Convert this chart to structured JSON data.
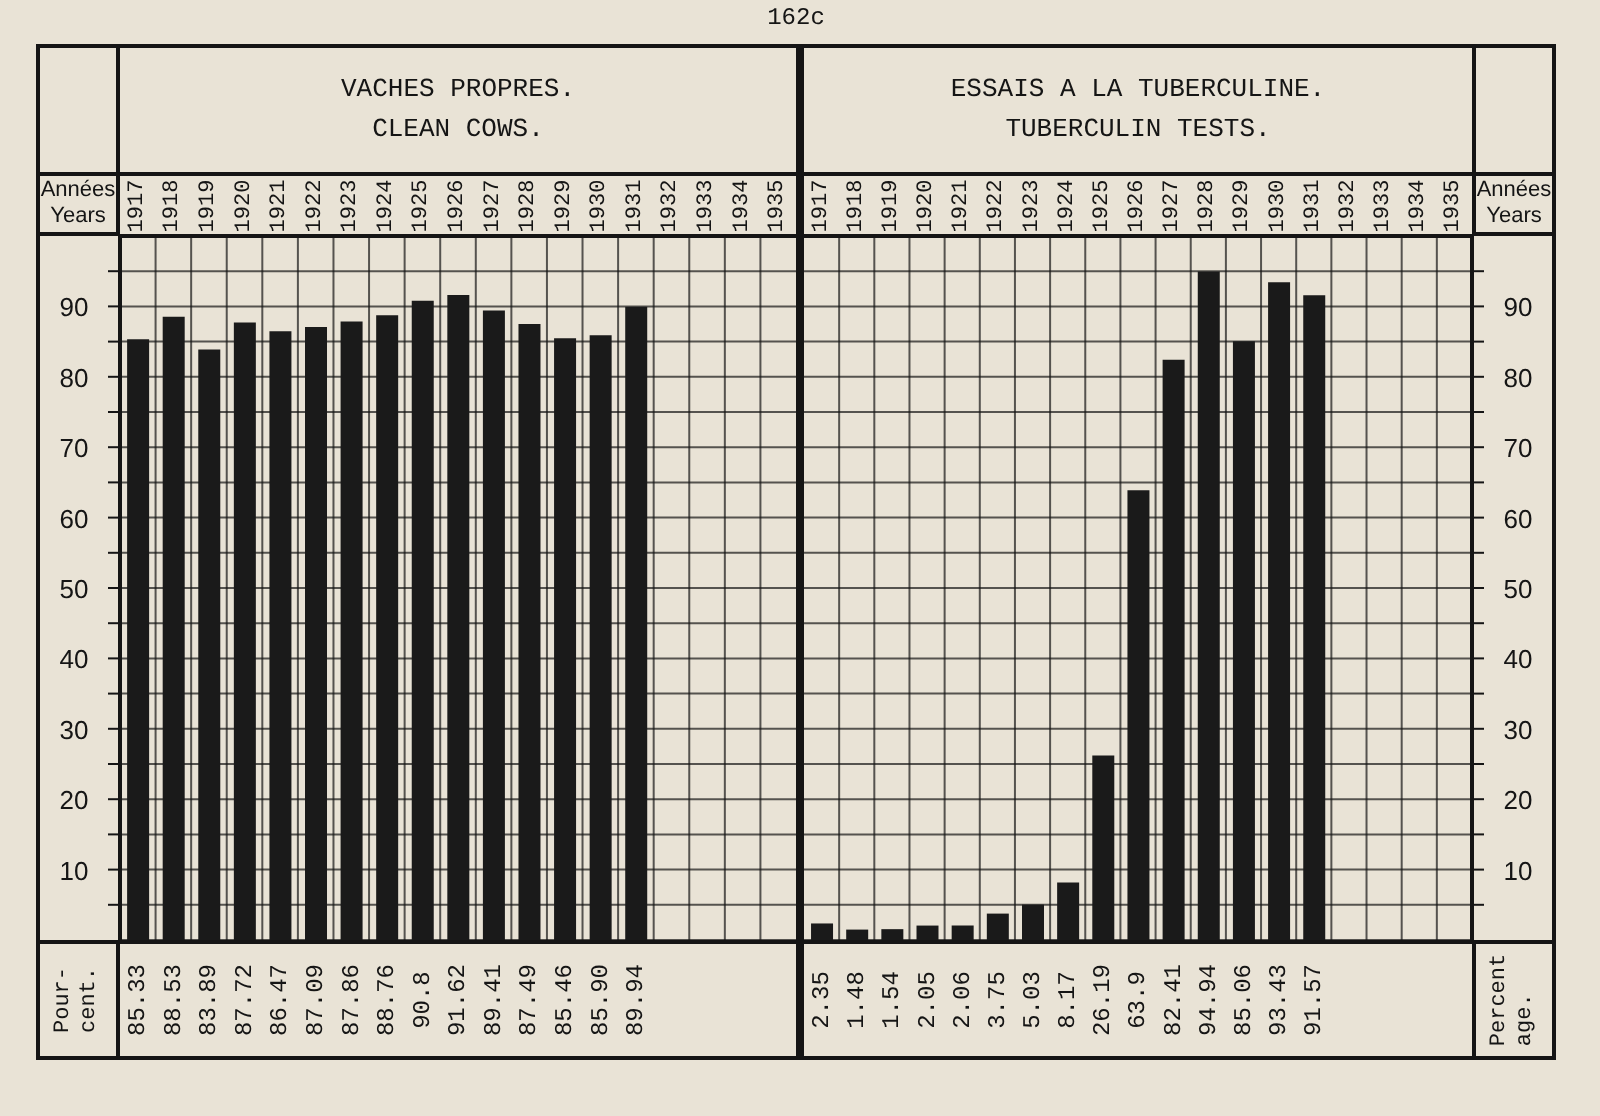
{
  "chart_data": [
    {
      "type": "bar",
      "title": "VACHES PROPRES.",
      "subtitle": "CLEAN COWS.",
      "xlabel": "Années\nYears",
      "ylabel": "Pour-\ncent.",
      "annotations": [
        "162c"
      ],
      "categories": [
        "1917",
        "1918",
        "1919",
        "1920",
        "1921",
        "1922",
        "1923",
        "1924",
        "1925",
        "1926",
        "1927",
        "1928",
        "1929",
        "1930",
        "1931",
        "1932",
        "1933",
        "1934",
        "1935"
      ],
      "values": [
        85.33,
        88.53,
        83.89,
        87.72,
        86.47,
        87.09,
        87.86,
        88.76,
        90.8,
        91.62,
        89.41,
        87.49,
        85.46,
        85.9,
        89.94,
        null,
        null,
        null,
        null
      ],
      "value_labels": [
        "85.33",
        "88.53",
        "83.89",
        "87.72",
        "86.47",
        "87.09",
        "87.86",
        "88.76",
        "90.8",
        "91.62",
        "89.41",
        "87.49",
        "85.46",
        "85.90",
        "89.94",
        null,
        null,
        null,
        null
      ],
      "color": "#1a1a1a",
      "ylim": [
        0,
        100
      ],
      "yticks": [
        {
          "value": 5,
          "label": null
        },
        10,
        {
          "value": 15,
          "label": null
        },
        20,
        {
          "value": 25,
          "label": null
        },
        30,
        {
          "value": 35,
          "label": null
        },
        40,
        {
          "value": 45,
          "label": null
        },
        50,
        {
          "value": 55,
          "label": null
        },
        60,
        {
          "value": 65,
          "label": null
        },
        70,
        {
          "value": 75,
          "label": null
        },
        80,
        {
          "value": 85,
          "label": null
        },
        90,
        {
          "value": 95,
          "label": null
        }
      ],
      "grid": true
    },
    {
      "type": "bar",
      "title": "ESSAIS A LA TUBERCULINE.",
      "subtitle": "TUBERCULIN TESTS.",
      "xlabel": "Années\nYears",
      "ylabel": "Percent\nage.",
      "categories": [
        "1917",
        "1918",
        "1919",
        "1920",
        "1921",
        "1922",
        "1923",
        "1924",
        "1925",
        "1926",
        "1927",
        "1928",
        "1929",
        "1930",
        "1931",
        "1932",
        "1933",
        "1934",
        "1935"
      ],
      "values": [
        2.35,
        1.48,
        1.54,
        2.05,
        2.06,
        3.75,
        5.03,
        8.17,
        26.19,
        63.9,
        82.41,
        94.94,
        85.06,
        93.43,
        91.57,
        null,
        null,
        null,
        null
      ],
      "value_labels": [
        "2.35",
        "1.48",
        "1.54",
        "2.05",
        "2.06",
        "3.75",
        "5.03",
        "8.17",
        "26.19",
        "63.9",
        "82.41",
        "94.94",
        "85.06",
        "93.43",
        "91.57",
        null,
        null,
        null,
        null
      ],
      "color": "#1a1a1a",
      "ylim": [
        0,
        100
      ],
      "yticks": [
        {
          "value": 5,
          "label": null
        },
        10,
        {
          "value": 15,
          "label": null
        },
        20,
        {
          "value": 25,
          "label": null
        },
        30,
        {
          "value": 35,
          "label": null
        },
        40,
        {
          "value": 45,
          "label": null
        },
        50,
        {
          "value": 55,
          "label": null
        },
        60,
        {
          "value": 65,
          "label": null
        },
        70,
        {
          "value": 75,
          "label": null
        },
        80,
        {
          "value": 85,
          "label": null
        },
        90,
        {
          "value": 95,
          "label": null
        }
      ],
      "grid": true
    }
  ]
}
